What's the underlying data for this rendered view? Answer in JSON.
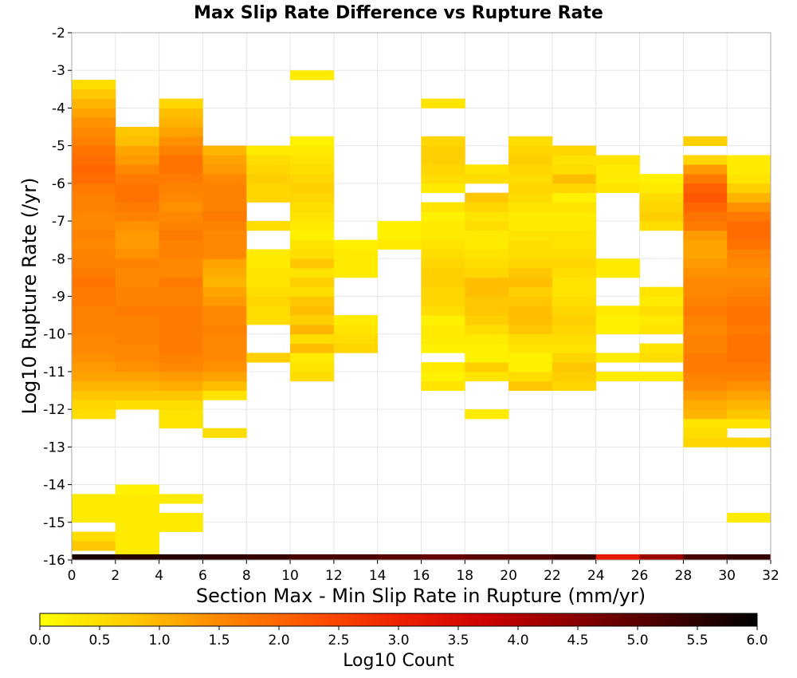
{
  "chart_data": {
    "type": "heatmap",
    "title": "Max Slip Rate Difference vs Rupture Rate",
    "xlabel": "Section Max - Min Slip Rate in Rupture (mm/yr)",
    "ylabel": "Log10 Rupture Rate (/yr)",
    "colorbar_label": "Log10 Count",
    "xlim": [
      0,
      32
    ],
    "ylim": [
      -16,
      -2
    ],
    "x_ticks": [
      "0",
      "2",
      "4",
      "6",
      "8",
      "10",
      "12",
      "14",
      "16",
      "18",
      "20",
      "22",
      "24",
      "26",
      "28",
      "30",
      "32"
    ],
    "y_ticks": [
      "-2",
      "-3",
      "-4",
      "-5",
      "-6",
      "-7",
      "-8",
      "-9",
      "-10",
      "-11",
      "-12",
      "-13",
      "-14",
      "-15",
      "-16"
    ],
    "colorbar_ticks": [
      "0.0",
      "0.5",
      "1.0",
      "1.5",
      "2.0",
      "2.5",
      "3.0",
      "3.5",
      "4.0",
      "4.5",
      "5.0",
      "5.5",
      "6.0"
    ],
    "color_range": [
      0,
      6
    ],
    "colormap": [
      "#ffff00",
      "#ffcc00",
      "#ff8800",
      "#ff5500",
      "#ee2200",
      "#cc0000",
      "#880000",
      "#440000",
      "#000000"
    ],
    "grid": true,
    "bin_width_x": 2,
    "bin_height_y": 0.25,
    "columns": [
      {
        "x": 0,
        "y_from": -15.75,
        "values": [
          0.8,
          0.5,
          null,
          0.3,
          0.3,
          0.3,
          null,
          null,
          null,
          null,
          null,
          null,
          null,
          null,
          0.5,
          0.6,
          0.8,
          1.0,
          1.2,
          1.3,
          1.4,
          1.5,
          1.5,
          1.6,
          1.6,
          1.6,
          1.7,
          1.7,
          1.8,
          1.7,
          1.6,
          1.6,
          1.5,
          1.6,
          1.5,
          1.5,
          1.6,
          1.6,
          1.7,
          1.9,
          2.0,
          1.9,
          1.8,
          1.6,
          1.5,
          1.4,
          1.2,
          1.0,
          0.8,
          0.5
        ]
      },
      {
        "x": 2,
        "y_from": -16.0,
        "values": [
          0.3,
          0.3,
          0.3,
          0.3,
          0.3,
          0.3,
          0.3,
          0.2,
          null,
          null,
          null,
          null,
          null,
          null,
          null,
          null,
          0.5,
          0.8,
          1.0,
          1.2,
          1.4,
          1.5,
          1.5,
          1.6,
          1.6,
          1.6,
          1.7,
          1.6,
          1.6,
          1.5,
          1.5,
          1.6,
          1.4,
          1.3,
          1.3,
          1.4,
          1.6,
          1.7,
          1.8,
          1.8,
          1.7,
          1.5,
          1.3,
          1.2,
          0.9,
          0.8
        ]
      },
      {
        "x": 4,
        "y_from": -15.25,
        "values": [
          0.3,
          0.3,
          null,
          0.3,
          null,
          null,
          null,
          null,
          null,
          null,
          null,
          0.4,
          0.4,
          0.5,
          0.8,
          1.1,
          1.3,
          1.5,
          1.6,
          1.7,
          1.7,
          1.7,
          1.7,
          1.7,
          1.6,
          1.6,
          1.7,
          1.5,
          1.5,
          1.6,
          1.6,
          1.7,
          1.6,
          1.5,
          1.4,
          1.5,
          1.6,
          1.7,
          1.8,
          1.8,
          1.6,
          1.4,
          1.2,
          1.0,
          0.9,
          0.6
        ]
      },
      {
        "x": 6,
        "y_from": -12.75,
        "values": [
          0.5,
          null,
          null,
          null,
          0.4,
          0.9,
          1.2,
          1.4,
          1.5,
          1.5,
          1.5,
          1.6,
          1.5,
          1.5,
          1.3,
          1.2,
          1.0,
          1.1,
          1.2,
          1.5,
          1.5,
          1.5,
          1.6,
          1.7,
          1.6,
          1.6,
          1.6,
          1.5,
          1.3,
          1.2,
          1.0
        ]
      },
      {
        "x": 8,
        "y_from": -10.75,
        "values": [
          0.7,
          null,
          null,
          null,
          0.5,
          0.5,
          0.6,
          0.5,
          0.4,
          0.4,
          0.3,
          0.3,
          null,
          null,
          0.5,
          null,
          null,
          0.6,
          0.6,
          0.7,
          0.6,
          0.5,
          0.3
        ]
      },
      {
        "x": 10,
        "y_from": -11.25,
        "values": [
          0.5,
          0.4,
          0.3,
          0.9,
          0.5,
          1.0,
          0.7,
          0.9,
          0.8,
          0.5,
          0.7,
          0.4,
          0.8,
          0.5,
          0.4,
          0.2,
          0.3,
          0.4,
          0.5,
          0.6,
          0.7,
          0.6,
          0.5,
          0.4,
          0.3,
          0.2,
          null,
          null,
          null,
          null,
          null,
          null,
          0.3
        ]
      },
      {
        "x": 12,
        "y_from": -10.5,
        "values": [
          0.6,
          0.5,
          0.4,
          0.3,
          null,
          null,
          null,
          null,
          0.3,
          0.3,
          0.3,
          0.2
        ]
      },
      {
        "x": 14,
        "y_from": -7.75,
        "values": [
          0.3,
          0.2,
          0.2
        ]
      },
      {
        "x": 16,
        "y_from": -11.5,
        "values": [
          0.4,
          0.2,
          0.3,
          null,
          0.2,
          0.3,
          0.3,
          0.2,
          0.5,
          0.6,
          0.6,
          0.7,
          0.7,
          0.6,
          0.5,
          0.4,
          0.3,
          0.3,
          0.2,
          0.4,
          null,
          0.3,
          0.5,
          0.6,
          0.7,
          0.7,
          0.6,
          null,
          null,
          null,
          0.4
        ]
      },
      {
        "x": 18,
        "y_from": -12.25,
        "values": [
          0.3,
          null,
          null,
          null,
          0.4,
          0.7,
          0.2,
          0.2,
          0.3,
          0.5,
          0.7,
          0.8,
          0.8,
          0.9,
          0.9,
          0.6,
          0.5,
          0.4,
          0.3,
          0.3,
          0.5,
          0.4,
          0.6,
          0.8,
          null,
          0.5,
          0.4
        ]
      },
      {
        "x": 20,
        "y_from": -11.5,
        "values": [
          0.8,
          0.5,
          0.2,
          0.2,
          0.4,
          0.5,
          0.8,
          0.9,
          0.9,
          0.8,
          0.7,
          0.9,
          0.8,
          0.6,
          0.5,
          0.5,
          0.4,
          0.3,
          0.3,
          0.4,
          0.5,
          0.6,
          0.5,
          0.6,
          0.7,
          0.6,
          0.5
        ]
      },
      {
        "x": 22,
        "y_from": -11.5,
        "values": [
          0.6,
          0.7,
          0.8,
          0.6,
          0.4,
          0.5,
          0.6,
          0.7,
          0.6,
          0.5,
          0.4,
          0.4,
          0.5,
          0.6,
          0.5,
          0.4,
          0.4,
          0.3,
          0.3,
          0.4,
          0.2,
          0.6,
          0.9,
          0.5,
          0.4,
          0.6
        ]
      },
      {
        "x": 24,
        "y_from": -11.25,
        "values": [
          0.3,
          null,
          0.3,
          null,
          null,
          0.2,
          0.2,
          0.3,
          null,
          null,
          null,
          0.3,
          0.3,
          null,
          null,
          null,
          null,
          null,
          null,
          null,
          0.4,
          0.3,
          0.3,
          0.4
        ]
      },
      {
        "x": 26,
        "y_from": -11.25,
        "values": [
          0.3,
          null,
          0.5,
          0.4,
          null,
          0.4,
          0.3,
          0.5,
          0.3,
          0.4,
          null,
          null,
          null,
          null,
          null,
          null,
          0.5,
          0.7,
          0.6,
          0.5,
          0.3,
          0.2
        ]
      },
      {
        "x": 28,
        "y_from": -13.0,
        "values": [
          0.6,
          0.5,
          0.4,
          1.0,
          1.1,
          1.3,
          1.5,
          1.6,
          1.7,
          1.7,
          1.6,
          1.6,
          1.5,
          1.6,
          1.7,
          1.6,
          1.5,
          1.5,
          1.4,
          1.3,
          1.2,
          1.2,
          1.3,
          1.7,
          1.8,
          2.0,
          2.2,
          2.1,
          1.7,
          1.3,
          0.6,
          null,
          0.7
        ]
      },
      {
        "x": 30,
        "y_from": -15.0,
        "values": [
          0.3,
          null,
          null,
          null,
          null,
          null,
          null,
          null,
          0.6,
          null,
          0.4,
          0.8,
          1.0,
          1.2,
          1.4,
          1.6,
          1.7,
          1.8,
          1.8,
          1.8,
          1.7,
          1.8,
          1.8,
          1.7,
          1.6,
          1.5,
          1.4,
          1.5,
          1.6,
          1.8,
          1.9,
          1.9,
          1.7,
          1.4,
          1.0,
          0.7,
          0.4,
          0.3,
          0.3
        ]
      }
    ],
    "bottom_row": {
      "y": -16.0,
      "height": 0.15,
      "values": [
        5.7,
        5.6,
        5.6,
        5.5,
        5.4,
        5.2,
        5.2,
        5.0,
        4.9,
        5.0,
        5.1,
        5.3,
        3.2,
        4.3,
        5.2,
        5.4
      ]
    }
  }
}
